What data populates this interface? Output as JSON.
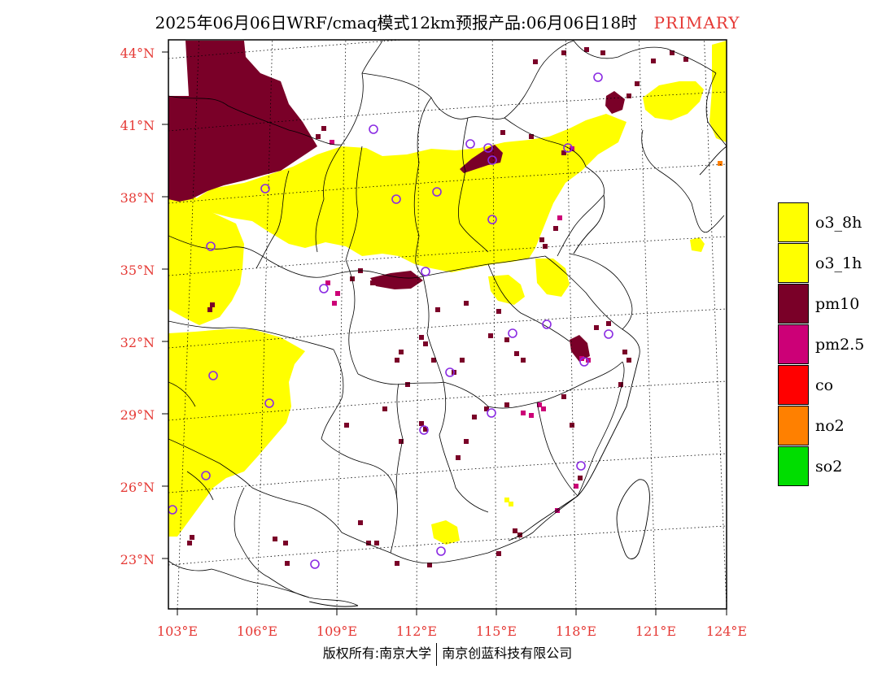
{
  "title": {
    "main": "2025年06月06日WRF/cmaq模式12km预报产品:06月06日18时",
    "tag": "PRIMARY"
  },
  "axes": {
    "latitude_labels": [
      "44°N",
      "41°N",
      "38°N",
      "35°N",
      "32°N",
      "29°N",
      "26°N",
      "23°N"
    ],
    "longitude_labels": [
      "103°E",
      "106°E",
      "109°E",
      "112°E",
      "115°E",
      "118°E",
      "121°E",
      "124°E"
    ]
  },
  "legend": [
    {
      "label": "o3_8h",
      "color": "#ffff00"
    },
    {
      "label": "o3_1h",
      "color": "#ffff00"
    },
    {
      "label": "pm10",
      "color": "#7a0028"
    },
    {
      "label": "pm2.5",
      "color": "#cc0077"
    },
    {
      "label": "co",
      "color": "#ff0000"
    },
    {
      "label": "no2",
      "color": "#ff8000"
    },
    {
      "label": "so2",
      "color": "#00dd00"
    }
  ],
  "copyright": {
    "left": "版权所有:南京大学",
    "right": "南京创蓝科技有限公司"
  },
  "colors": {
    "o3": "#ffff00",
    "pm10": "#7a0028",
    "pm25": "#cc0077",
    "station_marker": "#8a2be2",
    "axis_label": "#e53935"
  }
}
